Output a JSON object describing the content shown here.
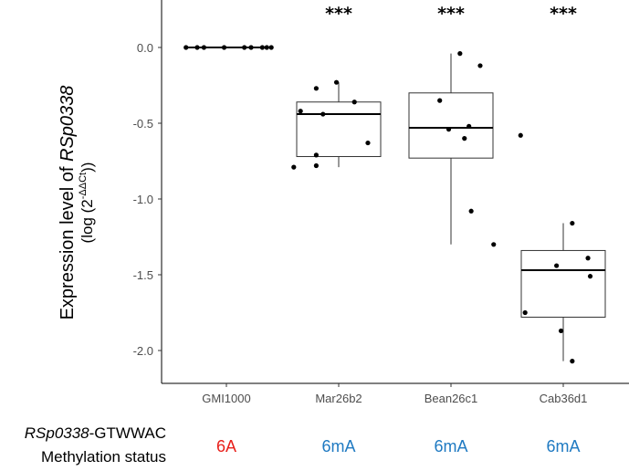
{
  "chart_data": {
    "type": "box",
    "categories": [
      "GMI1000",
      "Mar26b2",
      "Bean26c1",
      "Cab36d1"
    ],
    "y_ticks": [
      "0.0",
      "-0.5",
      "-1.0",
      "-1.5",
      "-2.0"
    ],
    "y_tick_values": [
      0,
      -0.5,
      -1.0,
      -1.5,
      -2.0
    ],
    "ylim": [
      -2.2,
      0.3
    ],
    "ylabel_prefix": "Expression level of ",
    "ylabel_gene": "RSp0338",
    "ylabel_sub_open": "(log (2",
    "ylabel_sub_sup": "-ΔΔCt",
    "ylabel_sub_close": "))",
    "significance": [
      "",
      "***",
      "***",
      "***"
    ],
    "boxes": [
      {
        "name": "GMI1000",
        "q1": 0.0,
        "median": 0.0,
        "q3": 0.0,
        "whisker_low": 0.0,
        "whisker_high": 0.0,
        "points": [
          0.0,
          0.0,
          0.0,
          0.0,
          0.0,
          0.0,
          0.0,
          0.0,
          0.0
        ],
        "jitter": [
          -0.36,
          -0.26,
          -0.2,
          -0.02,
          0.16,
          0.22,
          0.32,
          0.36,
          0.4
        ]
      },
      {
        "name": "Mar26b2",
        "q1": -0.72,
        "median": -0.44,
        "q3": -0.36,
        "whisker_low": -0.79,
        "whisker_high": -0.23,
        "points": [
          -0.79,
          -0.78,
          -0.71,
          -0.63,
          -0.44,
          -0.42,
          -0.36,
          -0.27,
          -0.23
        ],
        "jitter": [
          -0.4,
          -0.2,
          -0.2,
          0.26,
          -0.14,
          -0.34,
          0.14,
          -0.2,
          -0.02
        ]
      },
      {
        "name": "Bean26c1",
        "q1": -0.73,
        "median": -0.53,
        "q3": -0.3,
        "whisker_low": -1.3,
        "whisker_high": -0.04,
        "points": [
          -0.04,
          -0.12,
          -0.35,
          -0.52,
          -0.54,
          -0.6,
          -1.08,
          -1.3
        ],
        "jitter": [
          0.08,
          0.26,
          -0.1,
          0.16,
          -0.02,
          0.12,
          0.18,
          0.38
        ]
      },
      {
        "name": "Cab36d1",
        "q1": -1.78,
        "median": -1.47,
        "q3": -1.34,
        "whisker_low": -2.07,
        "whisker_high": -1.16,
        "points": [
          -0.58,
          -1.16,
          -1.39,
          -1.44,
          -1.51,
          -1.75,
          -1.87,
          -2.07
        ],
        "jitter": [
          -0.38,
          0.08,
          0.22,
          -0.06,
          0.24,
          -0.34,
          -0.02,
          0.08
        ]
      }
    ],
    "row1_label_gene": "RSp0338",
    "row1_label_suffix": "-GTWWAC",
    "row2_label": "Methylation status",
    "methylation_status": [
      "6A",
      "6mA",
      "6mA",
      "6mA"
    ],
    "status_colors": [
      "#e8201b",
      "#1f7ac2",
      "#1f7ac2",
      "#1f7ac2"
    ]
  }
}
